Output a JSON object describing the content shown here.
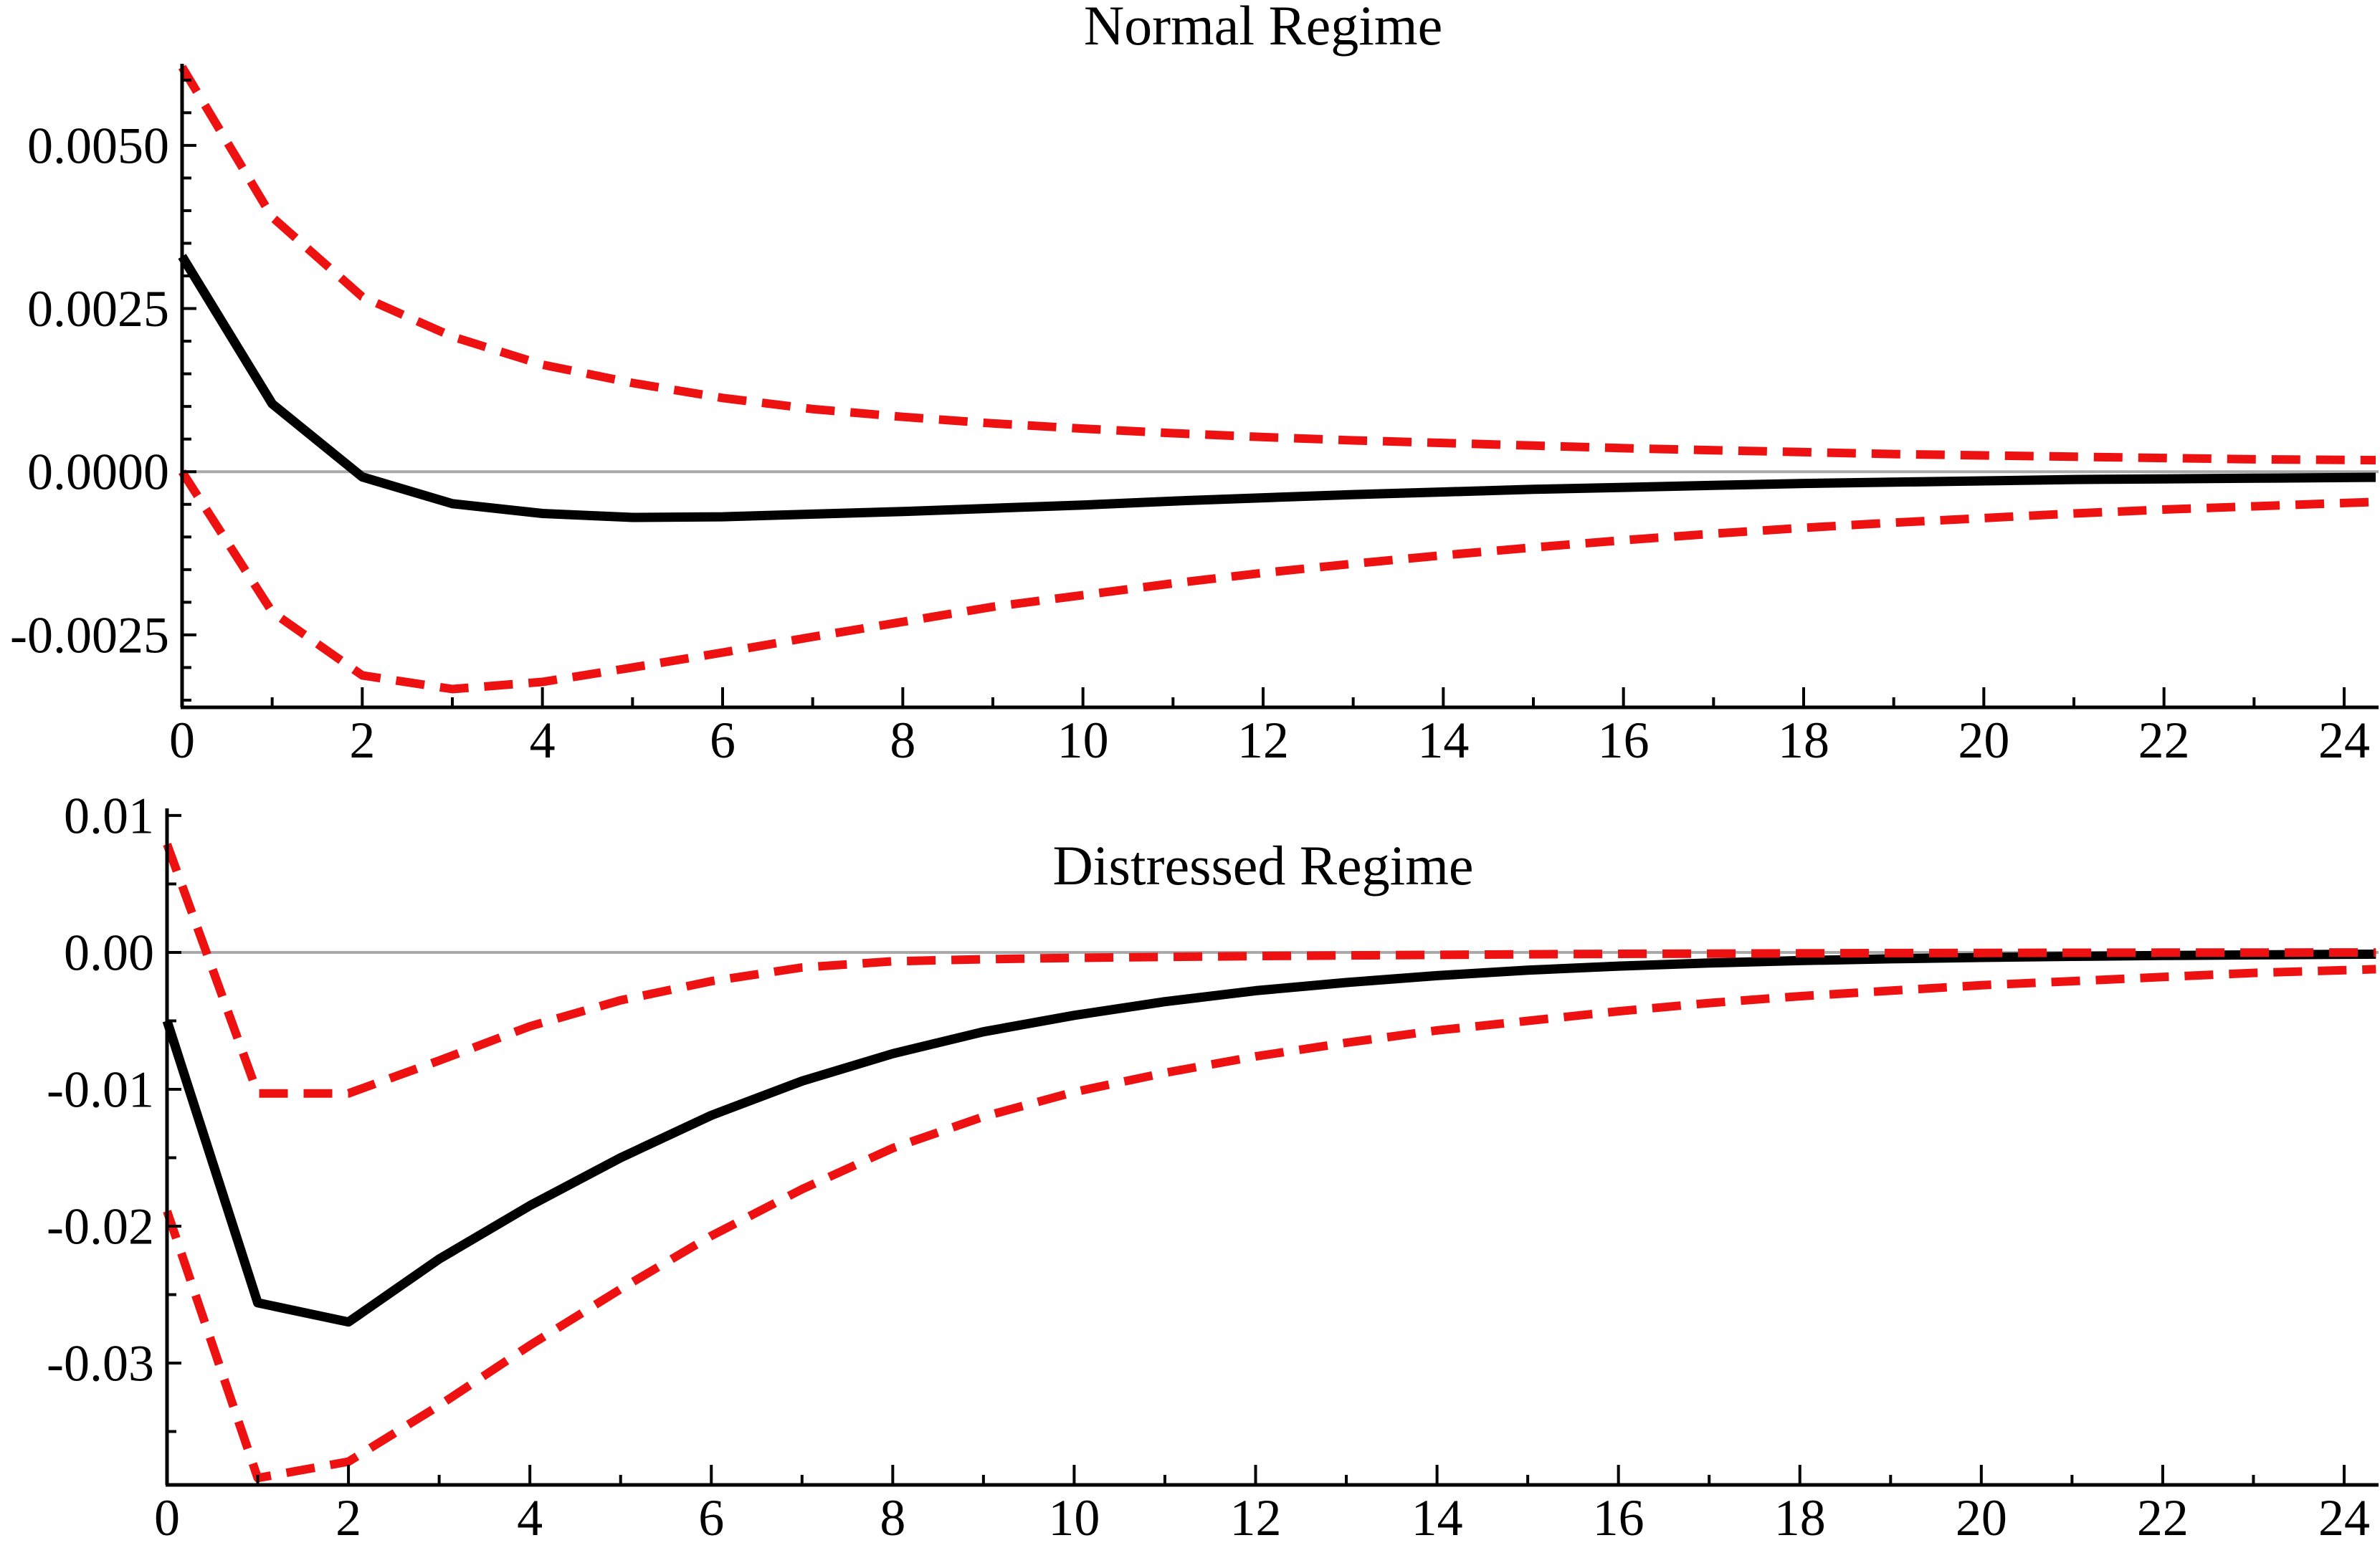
{
  "figure_titles": {
    "top": "Normal Regime",
    "bottom": "Distressed Regime"
  },
  "colors": {
    "series_line": "#000000",
    "band_line": "#ee1111",
    "zero_line": "#a9a9a9",
    "axis": "#000000",
    "background": "#ffffff"
  },
  "chart_data": [
    {
      "type": "line",
      "title": "Normal Regime",
      "xlabel": "",
      "ylabel": "",
      "grid": false,
      "legend": null,
      "zero_line": true,
      "xlim": [
        0,
        24
      ],
      "ylim": [
        -0.00361,
        0.00625
      ],
      "x": [
        0,
        1,
        2,
        3,
        4,
        5,
        6,
        7,
        8,
        9,
        10,
        11,
        12,
        13,
        14,
        15,
        16,
        17,
        18,
        19,
        20,
        21,
        22,
        23,
        24
      ],
      "x_major_ticks": [
        0,
        2,
        4,
        6,
        8,
        10,
        12,
        14,
        16,
        18,
        20,
        22,
        24
      ],
      "x_tick_labels": [
        "0",
        "2",
        "4",
        "6",
        "8",
        "10",
        "12",
        "14",
        "16",
        "18",
        "20",
        "22",
        "24"
      ],
      "x_minor_ticks": [
        1,
        3,
        5,
        7,
        9,
        11,
        13,
        15,
        17,
        19,
        21,
        23
      ],
      "y_ticks": [
        {
          "v": 0.005,
          "label": "0.0050"
        },
        {
          "v": 0.0025,
          "label": "0.0025"
        },
        {
          "v": 0.0,
          "label": "0.0000"
        },
        {
          "v": -0.0025,
          "label": "-0.0025"
        }
      ],
      "y_minor_ticks": [
        0.006,
        0.0055,
        0.0045,
        0.004,
        0.0035,
        0.003,
        0.002,
        0.0015,
        0.001,
        0.0005,
        -0.0005,
        -0.001,
        -0.0015,
        -0.002,
        -0.003,
        -0.0035
      ],
      "series": [
        {
          "name": "point-estimate",
          "style": "solid",
          "color": "#000000",
          "values": [
            0.0033,
            0.00104,
            -8e-05,
            -0.00049,
            -0.00064,
            -0.0007,
            -0.00069,
            -0.00065,
            -0.00061,
            -0.00056,
            -0.00051,
            -0.00045,
            -0.0004,
            -0.00035,
            -0.00031,
            -0.00027,
            -0.00024,
            -0.00021,
            -0.00018,
            -0.00016,
            -0.00014,
            -0.00012,
            -0.00011,
            -0.0001,
            -9e-05
          ]
        },
        {
          "name": "upper-band",
          "style": "dashed",
          "color": "#ee1111",
          "values": [
            0.0062,
            0.0039,
            0.00268,
            0.00207,
            0.00164,
            0.00136,
            0.00113,
            0.00096,
            0.00084,
            0.00074,
            0.00066,
            0.00059,
            0.00053,
            0.00048,
            0.00044,
            0.0004,
            0.00036,
            0.00033,
            0.0003,
            0.00027,
            0.00025,
            0.00023,
            0.00021,
            0.00019,
            0.00018
          ]
        },
        {
          "name": "lower-band",
          "style": "dashed",
          "color": "#ee1111",
          "values": [
            0.0,
            -0.00215,
            -0.00312,
            -0.00333,
            -0.00322,
            -0.003,
            -0.00277,
            -0.00253,
            -0.0023,
            -0.00207,
            -0.00189,
            -0.00171,
            -0.00155,
            -0.00141,
            -0.00128,
            -0.00116,
            -0.00105,
            -0.00095,
            -0.00086,
            -0.00078,
            -0.00071,
            -0.00064,
            -0.00058,
            -0.00053,
            -0.00048
          ]
        }
      ]
    },
    {
      "type": "line",
      "title": "Distressed Regime",
      "xlabel": "",
      "ylabel": "",
      "grid": false,
      "legend": null,
      "zero_line": true,
      "xlim": [
        0,
        24
      ],
      "ylim": [
        -0.0389,
        0.01052
      ],
      "x": [
        0,
        1,
        2,
        3,
        4,
        5,
        6,
        7,
        8,
        9,
        10,
        11,
        12,
        13,
        14,
        15,
        16,
        17,
        18,
        19,
        20,
        21,
        22,
        23,
        24
      ],
      "x_major_ticks": [
        0,
        2,
        4,
        6,
        8,
        10,
        12,
        14,
        16,
        18,
        20,
        22,
        24
      ],
      "x_tick_labels": [
        "0",
        "2",
        "4",
        "6",
        "8",
        "10",
        "12",
        "14",
        "16",
        "18",
        "20",
        "22",
        "24"
      ],
      "x_minor_ticks": [
        1,
        3,
        5,
        7,
        9,
        11,
        13,
        15,
        17,
        19,
        21,
        23
      ],
      "y_ticks": [
        {
          "v": 0.01,
          "label": "0.01"
        },
        {
          "v": 0.0,
          "label": "0.00"
        },
        {
          "v": -0.01,
          "label": "-0.01"
        },
        {
          "v": -0.02,
          "label": "-0.02"
        },
        {
          "v": -0.03,
          "label": "-0.03"
        }
      ],
      "y_minor_ticks": [
        0.005,
        -0.005,
        -0.015,
        -0.025,
        -0.035
      ],
      "series": [
        {
          "name": "point-estimate",
          "style": "solid",
          "color": "#000000",
          "values": [
            -0.005,
            -0.0256,
            -0.027,
            -0.0224,
            -0.0185,
            -0.015,
            -0.0119,
            -0.0094,
            -0.0074,
            -0.0058,
            -0.0046,
            -0.0036,
            -0.0028,
            -0.0022,
            -0.0017,
            -0.0013,
            -0.001,
            -0.00078,
            -0.0006,
            -0.00047,
            -0.00037,
            -0.00029,
            -0.00023,
            -0.00018,
            -0.00014
          ]
        },
        {
          "name": "upper-band",
          "style": "dashed",
          "color": "#ee1111",
          "values": [
            0.0079,
            -0.0103,
            -0.0103,
            -0.0079,
            -0.0054,
            -0.0035,
            -0.0021,
            -0.0011,
            -0.00065,
            -0.0005,
            -0.0004,
            -0.00033,
            -0.00027,
            -0.00022,
            -0.00018,
            -0.00014,
            -0.00011,
            -9e-05,
            -7e-05,
            -5e-05,
            -4e-05,
            -3e-05,
            -2e-05,
            -2e-05,
            -1e-05
          ]
        },
        {
          "name": "lower-band",
          "style": "dashed",
          "color": "#ee1111",
          "values": [
            -0.0189,
            -0.0384,
            -0.0372,
            -0.0331,
            -0.0287,
            -0.0246,
            -0.0207,
            -0.0173,
            -0.0143,
            -0.012,
            -0.0102,
            -0.0088,
            -0.0076,
            -0.0066,
            -0.0057,
            -0.005,
            -0.0043,
            -0.0037,
            -0.0032,
            -0.0028,
            -0.0024,
            -0.0021,
            -0.0018,
            -0.0015,
            -0.0013
          ]
        }
      ]
    }
  ]
}
